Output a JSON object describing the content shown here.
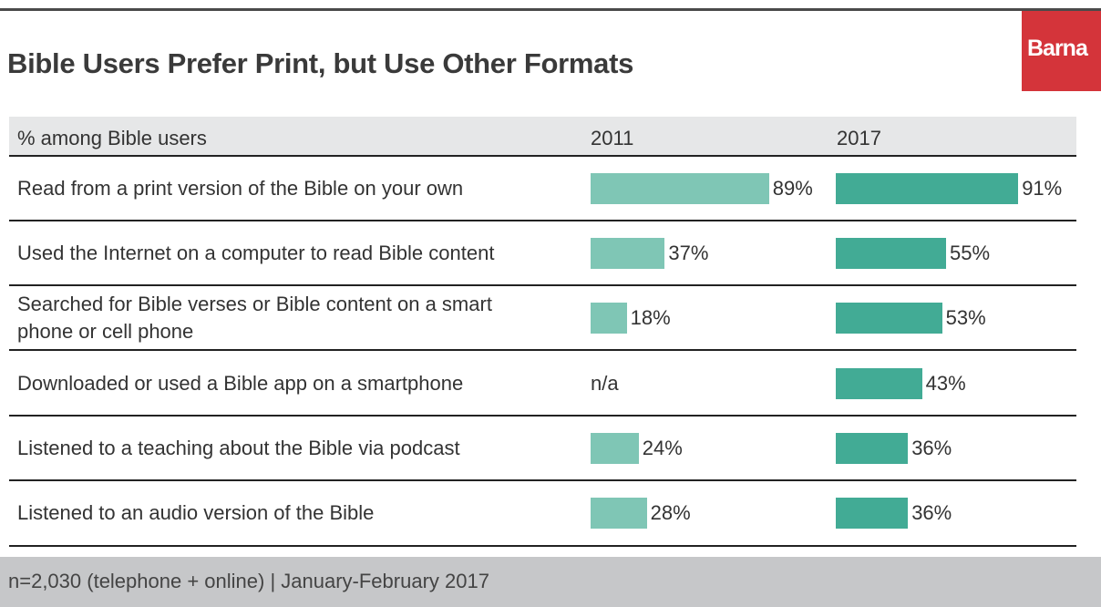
{
  "title": "Bible Users Prefer Print, but Use Other Formats",
  "logo": "Barna",
  "colors": {
    "y2011": "#7fc6b5",
    "y2017": "#42ab95",
    "logo": "#d4343a"
  },
  "chart_data": {
    "type": "bar",
    "title": "Bible Users Prefer Print, but Use Other Formats",
    "column_header": "% among Bible users",
    "series_names": [
      "2011",
      "2017"
    ],
    "categories": [
      "Read from a print version of the Bible on your own",
      "Used the Internet on a computer to read Bible content",
      "Searched for Bible verses or Bible content on a smart phone or cell phone",
      "Downloaded or used a Bible app on a smartphone",
      "Listened to a teaching about the Bible via podcast",
      "Listened to an audio version of the Bible"
    ],
    "series": [
      {
        "name": "2011",
        "values": [
          89,
          37,
          18,
          null,
          24,
          28
        ],
        "labels": [
          "89%",
          "37%",
          "18%",
          "n/a",
          "24%",
          "28%"
        ]
      },
      {
        "name": "2017",
        "values": [
          91,
          55,
          53,
          43,
          36,
          36
        ],
        "labels": [
          "91%",
          "55%",
          "53%",
          "43%",
          "36%",
          "36%"
        ]
      }
    ],
    "ylim": [
      0,
      100
    ],
    "orientation": "horizontal"
  },
  "footer": "n=2,030 (telephone + online) | January-February 2017"
}
